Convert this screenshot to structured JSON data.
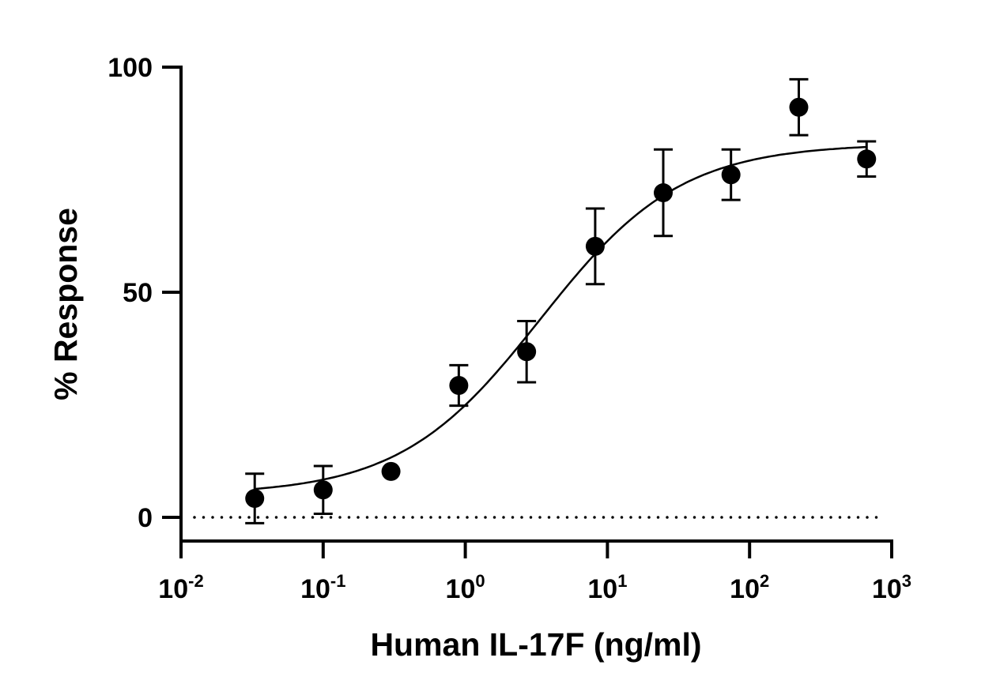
{
  "chart_data": {
    "type": "scatter",
    "title": "",
    "xlabel": "Human IL-17F (ng/ml)",
    "ylabel": "% Response",
    "xscale": "log",
    "xlim": [
      0.01,
      1000
    ],
    "ylim": [
      -5,
      100
    ],
    "xticks": [
      {
        "value": 0.01,
        "base": "10",
        "exp": "-2"
      },
      {
        "value": 0.1,
        "base": "10",
        "exp": "-1"
      },
      {
        "value": 1,
        "base": "10",
        "exp": "0"
      },
      {
        "value": 10,
        "base": "10",
        "exp": "1"
      },
      {
        "value": 100,
        "base": "10",
        "exp": "2"
      },
      {
        "value": 1000,
        "base": "10",
        "exp": "3"
      }
    ],
    "yticks": [
      {
        "value": 0,
        "label": "0"
      },
      {
        "value": 50,
        "label": "50"
      },
      {
        "value": 100,
        "label": "100"
      }
    ],
    "grid": false,
    "baseline": {
      "y": 0,
      "style": "dotted"
    },
    "points": [
      {
        "x": 0.033,
        "y": 4.2,
        "err": 5.5
      },
      {
        "x": 0.1,
        "y": 6.1,
        "err": 5.3
      },
      {
        "x": 0.3,
        "y": 10.2,
        "err": 0
      },
      {
        "x": 0.9,
        "y": 29.3,
        "err": 4.5
      },
      {
        "x": 2.7,
        "y": 36.8,
        "err": 6.8
      },
      {
        "x": 8.2,
        "y": 60.2,
        "err": 8.4
      },
      {
        "x": 24.7,
        "y": 72.1,
        "err": 9.6
      },
      {
        "x": 74,
        "y": 76.1,
        "err": 5.6
      },
      {
        "x": 222,
        "y": 91.1,
        "err": 6.2
      },
      {
        "x": 666,
        "y": 79.6,
        "err": 3.9
      }
    ],
    "fit": {
      "model": "4PL",
      "bottom": 5,
      "top": 83,
      "ec50": 3.37,
      "hill": 0.88
    },
    "colors": {
      "marker": "#000000",
      "line": "#000000"
    }
  }
}
